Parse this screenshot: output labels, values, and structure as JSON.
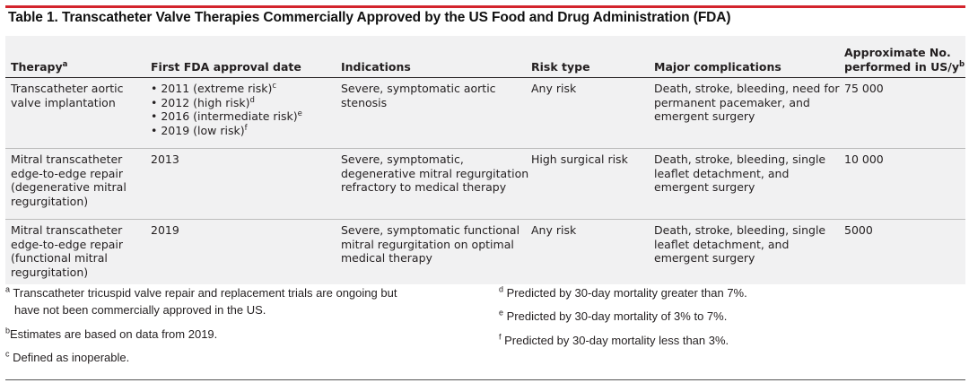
{
  "title": "Table 1. Transcatheter Valve Therapies Commercially Approved by the US Food and Drug Administration (FDA)",
  "colors": {
    "accent_rule": "#d3242c",
    "table_bg": "#f1f1f2"
  },
  "headers": {
    "therapy": "Therapy",
    "therapy_sup": "a",
    "approval": "First FDA approval date",
    "indications": "Indications",
    "risk": "Risk type",
    "complications": "Major complications",
    "volume_line1": "Approximate No.",
    "volume_line2": "performed in US/y",
    "volume_sup": "b"
  },
  "rows": [
    {
      "therapy": "Transcatheter aortic valve implantation",
      "approval": [
        {
          "text": "• 2011 (extreme risk)",
          "sup": "c"
        },
        {
          "text": "• 2012 (high risk)",
          "sup": "d"
        },
        {
          "text": "• 2016 (intermediate risk)",
          "sup": "e"
        },
        {
          "text": "• 2019 (low risk)",
          "sup": "f"
        }
      ],
      "indications": "Severe, symptomatic aortic stenosis",
      "risk": "Any risk",
      "complications": "Death, stroke, bleeding, need for permanent pacemaker, and emergent surgery",
      "volume": "75 000"
    },
    {
      "therapy": "Mitral transcatheter edge-to-edge repair (degenerative mitral regurgitation)",
      "approval": "2013",
      "indications": "Severe, symptomatic, degenerative mitral regurgitation refractory to medical therapy",
      "risk": "High surgical risk",
      "complications": "Death, stroke, bleeding, single leaflet detachment, and emergent surgery",
      "volume": "10 000"
    },
    {
      "therapy": "Mitral transcatheter edge-to-edge repair (functional mitral regurgitation)",
      "approval": "2019",
      "indications": "Severe, symptomatic functional mitral regurgitation on optimal medical therapy",
      "risk": "Any risk",
      "complications": "Death, stroke, bleeding, single leaflet detachment, and emergent surgery",
      "volume": "5000"
    }
  ],
  "footnotes": {
    "a": {
      "mark": "a",
      "line1": "Transcatheter tricuspid valve repair and replacement trials are ongoing but",
      "line2": "have not been commercially approved in the US."
    },
    "b": {
      "mark": "b",
      "text": "Estimates are based on data from 2019."
    },
    "c": {
      "mark": "c",
      "text": "Defined as inoperable."
    },
    "d": {
      "mark": "d",
      "text": "Predicted by 30-day mortality greater than 7%."
    },
    "e": {
      "mark": "e",
      "text": "Predicted by 30-day mortality of 3% to 7%."
    },
    "f": {
      "mark": "f",
      "text": "Predicted by 30-day mortality less than 3%."
    }
  }
}
